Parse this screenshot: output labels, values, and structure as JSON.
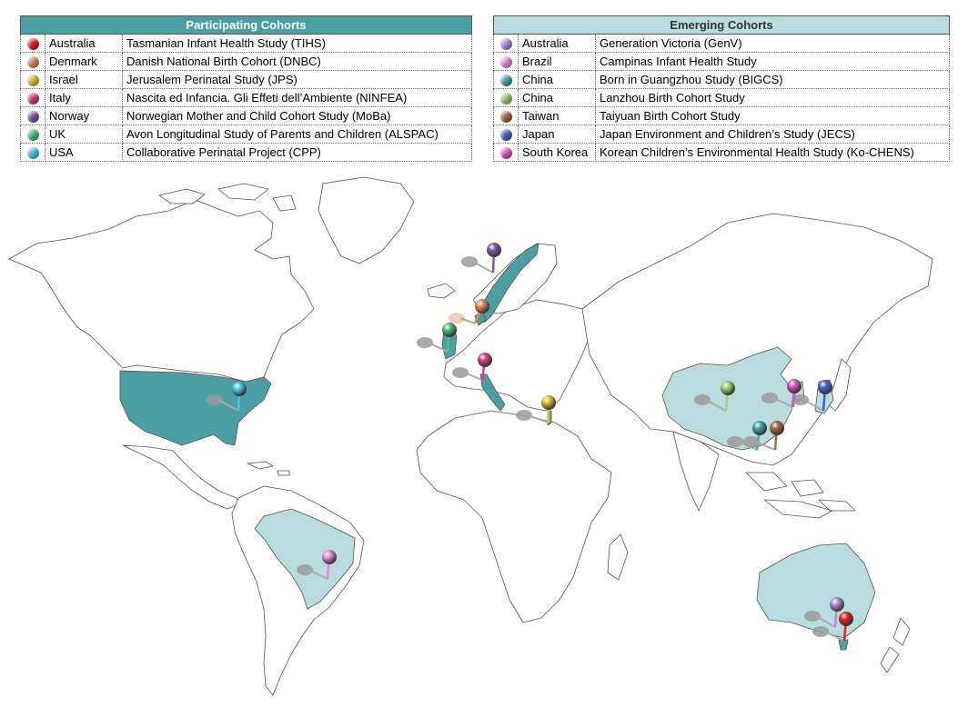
{
  "participating": {
    "title": "Participating Cohorts",
    "header_bg": "#4b9fa3",
    "header_color": "#ffffff",
    "rows": [
      {
        "country": "Australia",
        "study": "Tasmanian Infant Health Study (TIHS)",
        "color": "#e8201e"
      },
      {
        "country": "Denmark",
        "study": "Danish National Birth Cohort (DNBC)",
        "color": "#e08850"
      },
      {
        "country": "Israel",
        "study": "Jerusalem Perinatal Study (JPS)",
        "color": "#e2c232"
      },
      {
        "country": "Italy",
        "study": "Nascita ed Infancia. Gli Effeti dell’Ambiente (NINFEA)",
        "color": "#d83e8a"
      },
      {
        "country": "Norway",
        "study": "Norwegian Mother and Child Cohort Study (MoBa)",
        "color": "#7f5aa8"
      },
      {
        "country": "UK",
        "study": "Avon Longitudinal Study of Parents and Children (ALSPAC)",
        "color": "#4cc07a"
      },
      {
        "country": "USA",
        "study": "Collaborative Perinatal Project (CPP)",
        "color": "#4fc6e8"
      }
    ]
  },
  "emerging": {
    "title": "Emerging Cohorts",
    "header_bg": "#b9dcdf",
    "header_color": "#333333",
    "rows": [
      {
        "country": "Australia",
        "study": "Generation Victoria (GenV)",
        "color": "#b38be0"
      },
      {
        "country": "Brazil",
        "study": "Campinas Infant Health Study",
        "color": "#ee88dd"
      },
      {
        "country": "China",
        "study": "Born in Guangzhou Study (BIGCS)",
        "color": "#4aa6a8"
      },
      {
        "country": "China",
        "study": "Lanzhou Birth Cohort Study",
        "color": "#9ad46a"
      },
      {
        "country": "Taiwan",
        "study": "Taiyuan Birth Cohort Study",
        "color": "#a86a42"
      },
      {
        "country": "Japan",
        "study": "Japan Environment and Children’s Study (JECS)",
        "color": "#4a62cc"
      },
      {
        "country": "South Korea",
        "study": "Korean Children’s Environmental Health Study (Ko-CHENS)",
        "color": "#dd55c0"
      }
    ]
  },
  "map_colors": {
    "participating_fill": "#4b9fa3",
    "emerging_fill": "#b9dcdf",
    "land_fill": "#ffffff",
    "border": "#555555"
  }
}
